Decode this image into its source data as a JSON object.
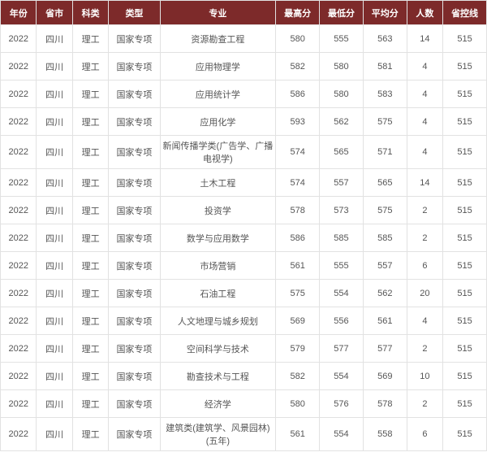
{
  "table": {
    "header_bg": "#7d2a2a",
    "header_fg": "#ffffff",
    "border_color": "#e2e2e2",
    "cell_fg": "#555555",
    "columns": [
      {
        "key": "year",
        "label": "年份",
        "class": "c-year"
      },
      {
        "key": "prov",
        "label": "省市",
        "class": "c-prov"
      },
      {
        "key": "cat",
        "label": "科类",
        "class": "c-cat"
      },
      {
        "key": "type",
        "label": "类型",
        "class": "c-type"
      },
      {
        "key": "major",
        "label": "专业",
        "class": "c-major"
      },
      {
        "key": "max",
        "label": "最高分",
        "class": "c-max"
      },
      {
        "key": "min",
        "label": "最低分",
        "class": "c-min"
      },
      {
        "key": "avg",
        "label": "平均分",
        "class": "c-avg"
      },
      {
        "key": "cnt",
        "label": "人数",
        "class": "c-cnt"
      },
      {
        "key": "line",
        "label": "省控线",
        "class": "c-line"
      }
    ],
    "rows": [
      {
        "year": "2022",
        "prov": "四川",
        "cat": "理工",
        "type": "国家专项",
        "major": "资源勘查工程",
        "max": "580",
        "min": "555",
        "avg": "563",
        "cnt": "14",
        "line": "515"
      },
      {
        "year": "2022",
        "prov": "四川",
        "cat": "理工",
        "type": "国家专项",
        "major": "应用物理学",
        "max": "582",
        "min": "580",
        "avg": "581",
        "cnt": "4",
        "line": "515"
      },
      {
        "year": "2022",
        "prov": "四川",
        "cat": "理工",
        "type": "国家专项",
        "major": "应用统计学",
        "max": "586",
        "min": "580",
        "avg": "583",
        "cnt": "4",
        "line": "515"
      },
      {
        "year": "2022",
        "prov": "四川",
        "cat": "理工",
        "type": "国家专项",
        "major": "应用化学",
        "max": "593",
        "min": "562",
        "avg": "575",
        "cnt": "4",
        "line": "515"
      },
      {
        "year": "2022",
        "prov": "四川",
        "cat": "理工",
        "type": "国家专项",
        "major": "新闻传播学类(广告学、广播电视学)",
        "max": "574",
        "min": "565",
        "avg": "571",
        "cnt": "4",
        "line": "515"
      },
      {
        "year": "2022",
        "prov": "四川",
        "cat": "理工",
        "type": "国家专项",
        "major": "土木工程",
        "max": "574",
        "min": "557",
        "avg": "565",
        "cnt": "14",
        "line": "515"
      },
      {
        "year": "2022",
        "prov": "四川",
        "cat": "理工",
        "type": "国家专项",
        "major": "投资学",
        "max": "578",
        "min": "573",
        "avg": "575",
        "cnt": "2",
        "line": "515"
      },
      {
        "year": "2022",
        "prov": "四川",
        "cat": "理工",
        "type": "国家专项",
        "major": "数学与应用数学",
        "max": "586",
        "min": "585",
        "avg": "585",
        "cnt": "2",
        "line": "515"
      },
      {
        "year": "2022",
        "prov": "四川",
        "cat": "理工",
        "type": "国家专项",
        "major": "市场营销",
        "max": "561",
        "min": "555",
        "avg": "557",
        "cnt": "6",
        "line": "515"
      },
      {
        "year": "2022",
        "prov": "四川",
        "cat": "理工",
        "type": "国家专项",
        "major": "石油工程",
        "max": "575",
        "min": "554",
        "avg": "562",
        "cnt": "20",
        "line": "515"
      },
      {
        "year": "2022",
        "prov": "四川",
        "cat": "理工",
        "type": "国家专项",
        "major": "人文地理与城乡规划",
        "max": "569",
        "min": "556",
        "avg": "561",
        "cnt": "4",
        "line": "515"
      },
      {
        "year": "2022",
        "prov": "四川",
        "cat": "理工",
        "type": "国家专项",
        "major": "空间科学与技术",
        "max": "579",
        "min": "577",
        "avg": "577",
        "cnt": "2",
        "line": "515"
      },
      {
        "year": "2022",
        "prov": "四川",
        "cat": "理工",
        "type": "国家专项",
        "major": "勘查技术与工程",
        "max": "582",
        "min": "554",
        "avg": "569",
        "cnt": "10",
        "line": "515"
      },
      {
        "year": "2022",
        "prov": "四川",
        "cat": "理工",
        "type": "国家专项",
        "major": "经济学",
        "max": "580",
        "min": "576",
        "avg": "578",
        "cnt": "2",
        "line": "515"
      },
      {
        "year": "2022",
        "prov": "四川",
        "cat": "理工",
        "type": "国家专项",
        "major": "建筑类(建筑学、风景园林)(五年)",
        "max": "561",
        "min": "554",
        "avg": "558",
        "cnt": "6",
        "line": "515"
      }
    ]
  }
}
